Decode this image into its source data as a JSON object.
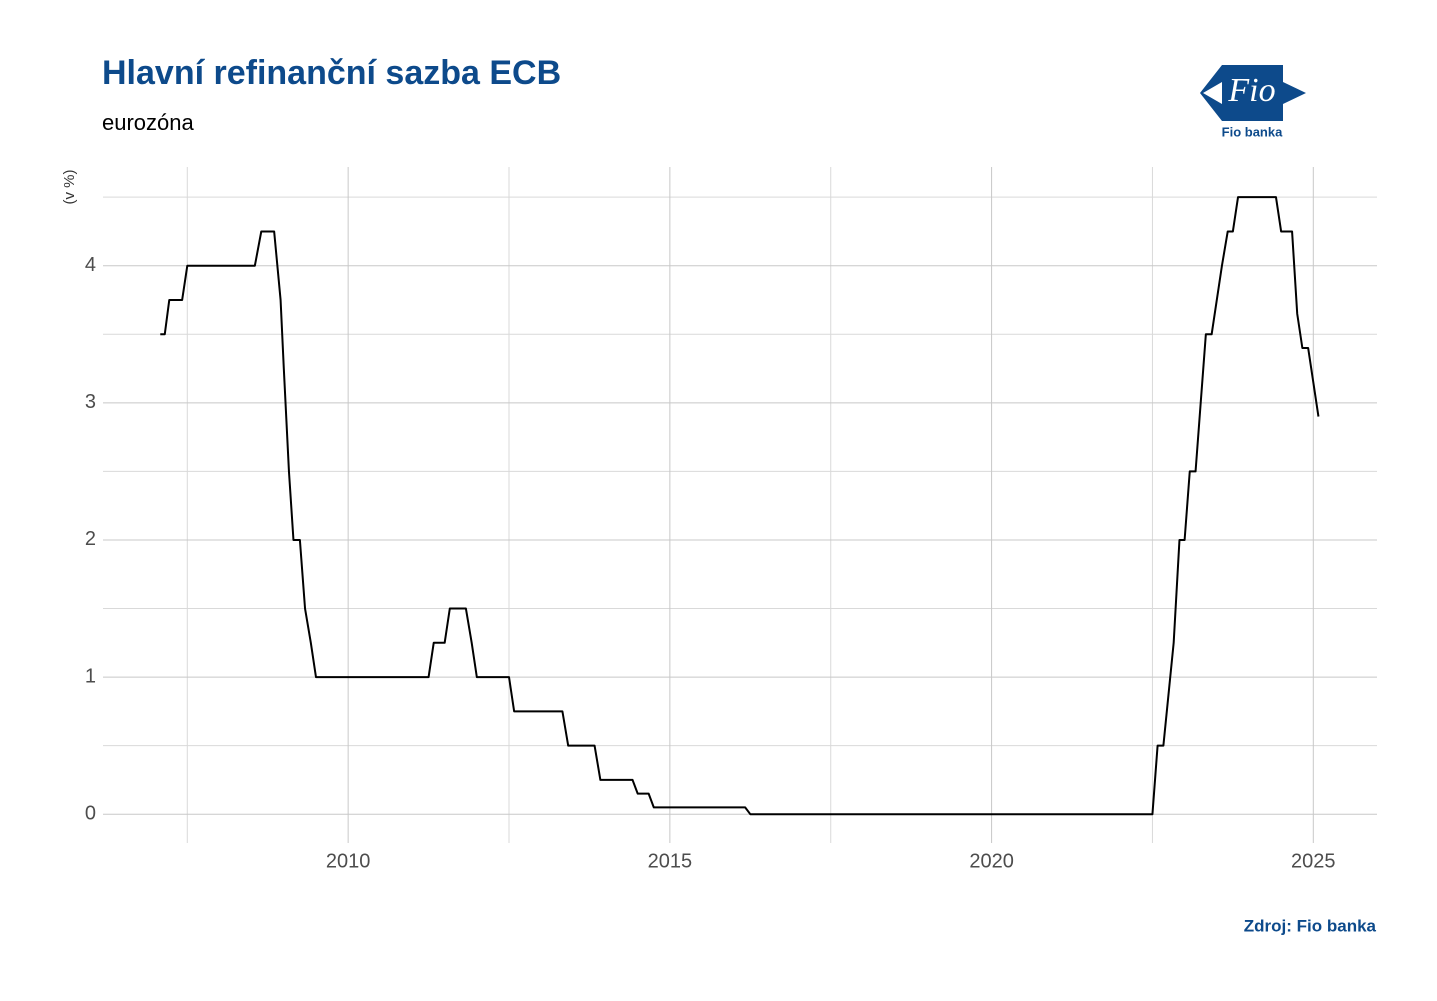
{
  "chart_data": {
    "type": "line",
    "title": "Hlavní refinanční sazba ECB",
    "subtitle": "eurozóna",
    "y_label": "(v %)",
    "caption": "Zdroj: Fio banka",
    "logo": {
      "mark": "Fio",
      "name": "Fio banka"
    },
    "x": [
      2007.08,
      2007.15,
      2007.22,
      2007.42,
      2007.5,
      2008.55,
      2008.65,
      2008.85,
      2008.95,
      2009.0,
      2009.08,
      2009.15,
      2009.25,
      2009.33,
      2009.42,
      2009.5,
      2011.25,
      2011.33,
      2011.5,
      2011.58,
      2011.83,
      2011.92,
      2012.0,
      2012.5,
      2012.58,
      2013.33,
      2013.42,
      2013.83,
      2013.92,
      2014.42,
      2014.5,
      2014.67,
      2014.75,
      2016.17,
      2016.25,
      2022.5,
      2022.58,
      2022.67,
      2022.83,
      2022.92,
      2023.0,
      2023.08,
      2023.17,
      2023.25,
      2023.33,
      2023.42,
      2023.58,
      2023.67,
      2023.75,
      2023.83,
      2024.42,
      2024.5,
      2024.67,
      2024.75,
      2024.83,
      2024.92,
      2025.08
    ],
    "series": [
      {
        "name": "Hlavní refinanční sazba",
        "color": "#000000",
        "values": [
          3.5,
          3.5,
          3.75,
          3.75,
          4.0,
          4.0,
          4.25,
          4.25,
          3.75,
          3.25,
          2.5,
          2.0,
          2.0,
          1.5,
          1.25,
          1.0,
          1.0,
          1.25,
          1.25,
          1.5,
          1.5,
          1.25,
          1.0,
          1.0,
          0.75,
          0.75,
          0.5,
          0.5,
          0.25,
          0.25,
          0.15,
          0.15,
          0.05,
          0.05,
          0.0,
          0.0,
          0.5,
          0.5,
          1.25,
          2.0,
          2.0,
          2.5,
          2.5,
          3.0,
          3.5,
          3.5,
          4.0,
          4.25,
          4.25,
          4.5,
          4.5,
          4.25,
          4.25,
          3.65,
          3.4,
          3.4,
          2.9
        ]
      }
    ],
    "xlim": [
      2006.19,
      2025.99
    ],
    "xticks": [
      2010,
      2015,
      2020,
      2025
    ],
    "xminor": [
      2007.5,
      2012.5,
      2017.5,
      2022.5
    ],
    "ylim": [
      -0.21,
      4.72
    ],
    "yticks": [
      0,
      1,
      2,
      3,
      4
    ],
    "yminor": [
      0.5,
      1.5,
      2.5,
      3.5,
      4.5
    ],
    "grid": true,
    "legend": false
  }
}
